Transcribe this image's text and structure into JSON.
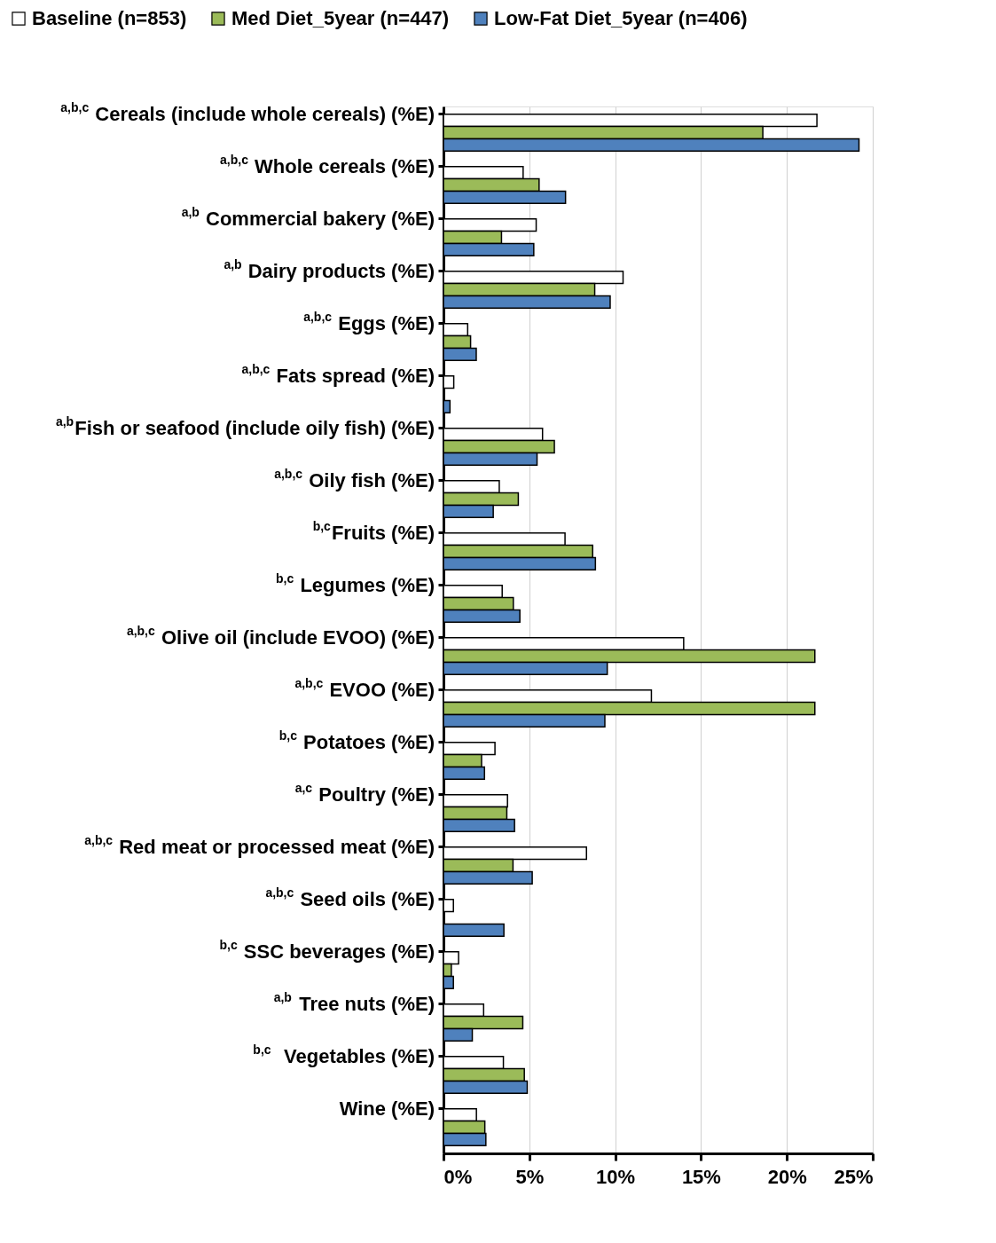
{
  "chart_data": {
    "type": "bar",
    "orientation": "horizontal",
    "categories": [
      "$^{a,b,c}$ Cereals (include whole cereals) (%E)",
      "$^{a,b,c}$ Whole cereals (%E)",
      "$^{a,b}$ Commercial bakery (%E)",
      "$^{a,b}$ Dairy products (%E)",
      "$^{a,b,c}$ Eggs (%E)",
      "$^{a,b,c}$ Fats spread (%E)",
      "$^{a,b}$Fish or seafood (include oily fish) (%E)",
      "$^{a,b,c}$ Oily fish (%E)",
      "$^{b,c}$Fruits (%E)",
      "$^{b,c}$ Legumes (%E)",
      "$^{a,b,c}$ Olive oil (include EVOO) (%E)",
      "$^{a,b,c}$ EVOO (%E)",
      "$^{b,c}$ Potatoes (%E)",
      "$^{a,c}$ Poultry (%E)",
      "$^{a,b,c}$ Red meat or processed meat (%E)",
      "$^{a,b,c}$ Seed oils (%E)",
      "$^{b,c}$ SSC beverages (%E)",
      "$^{a,b}$ Tree nuts (%E)",
      "$^{b,c}$  Vegetables (%E)",
      "Wine (%E)"
    ],
    "series": [
      {
        "name": "Baseline (n=853)",
        "color": "#ffffff",
        "values": [
          21.75,
          4.64,
          5.4,
          10.46,
          1.41,
          0.6,
          5.77,
          3.25,
          7.08,
          3.42,
          13.99,
          12.11,
          3.0,
          3.73,
          8.33,
          0.58,
          0.88,
          2.34,
          3.49,
          1.92
        ]
      },
      {
        "name": "Med Diet_5year (n=447)",
        "color": "#9bbb59",
        "values": [
          18.6,
          5.57,
          3.38,
          8.81,
          1.58,
          null,
          6.46,
          4.36,
          8.69,
          4.07,
          21.63,
          21.63,
          2.22,
          3.69,
          4.05,
          null,
          0.46,
          4.62,
          4.71,
          2.41
        ]
      },
      {
        "name": "Low-Fat Diet_5year  (n=406)",
        "color": "#4f81bd",
        "values": [
          24.2,
          7.11,
          5.26,
          9.71,
          1.91,
          0.38,
          5.45,
          2.9,
          8.85,
          4.45,
          9.54,
          9.4,
          2.39,
          4.14,
          5.17,
          3.52,
          0.58,
          1.68,
          4.88,
          2.47
        ]
      }
    ],
    "xlim": [
      0,
      25
    ],
    "xticks": [
      {
        "value": 0,
        "label": "0%"
      },
      {
        "value": 5,
        "label": "5%"
      },
      {
        "value": 10,
        "label": "10%"
      },
      {
        "value": 15,
        "label": "15%"
      },
      {
        "value": 20,
        "label": "20%"
      },
      {
        "value": 25,
        "label": "25%"
      }
    ],
    "grid": "x",
    "legend": "top"
  }
}
